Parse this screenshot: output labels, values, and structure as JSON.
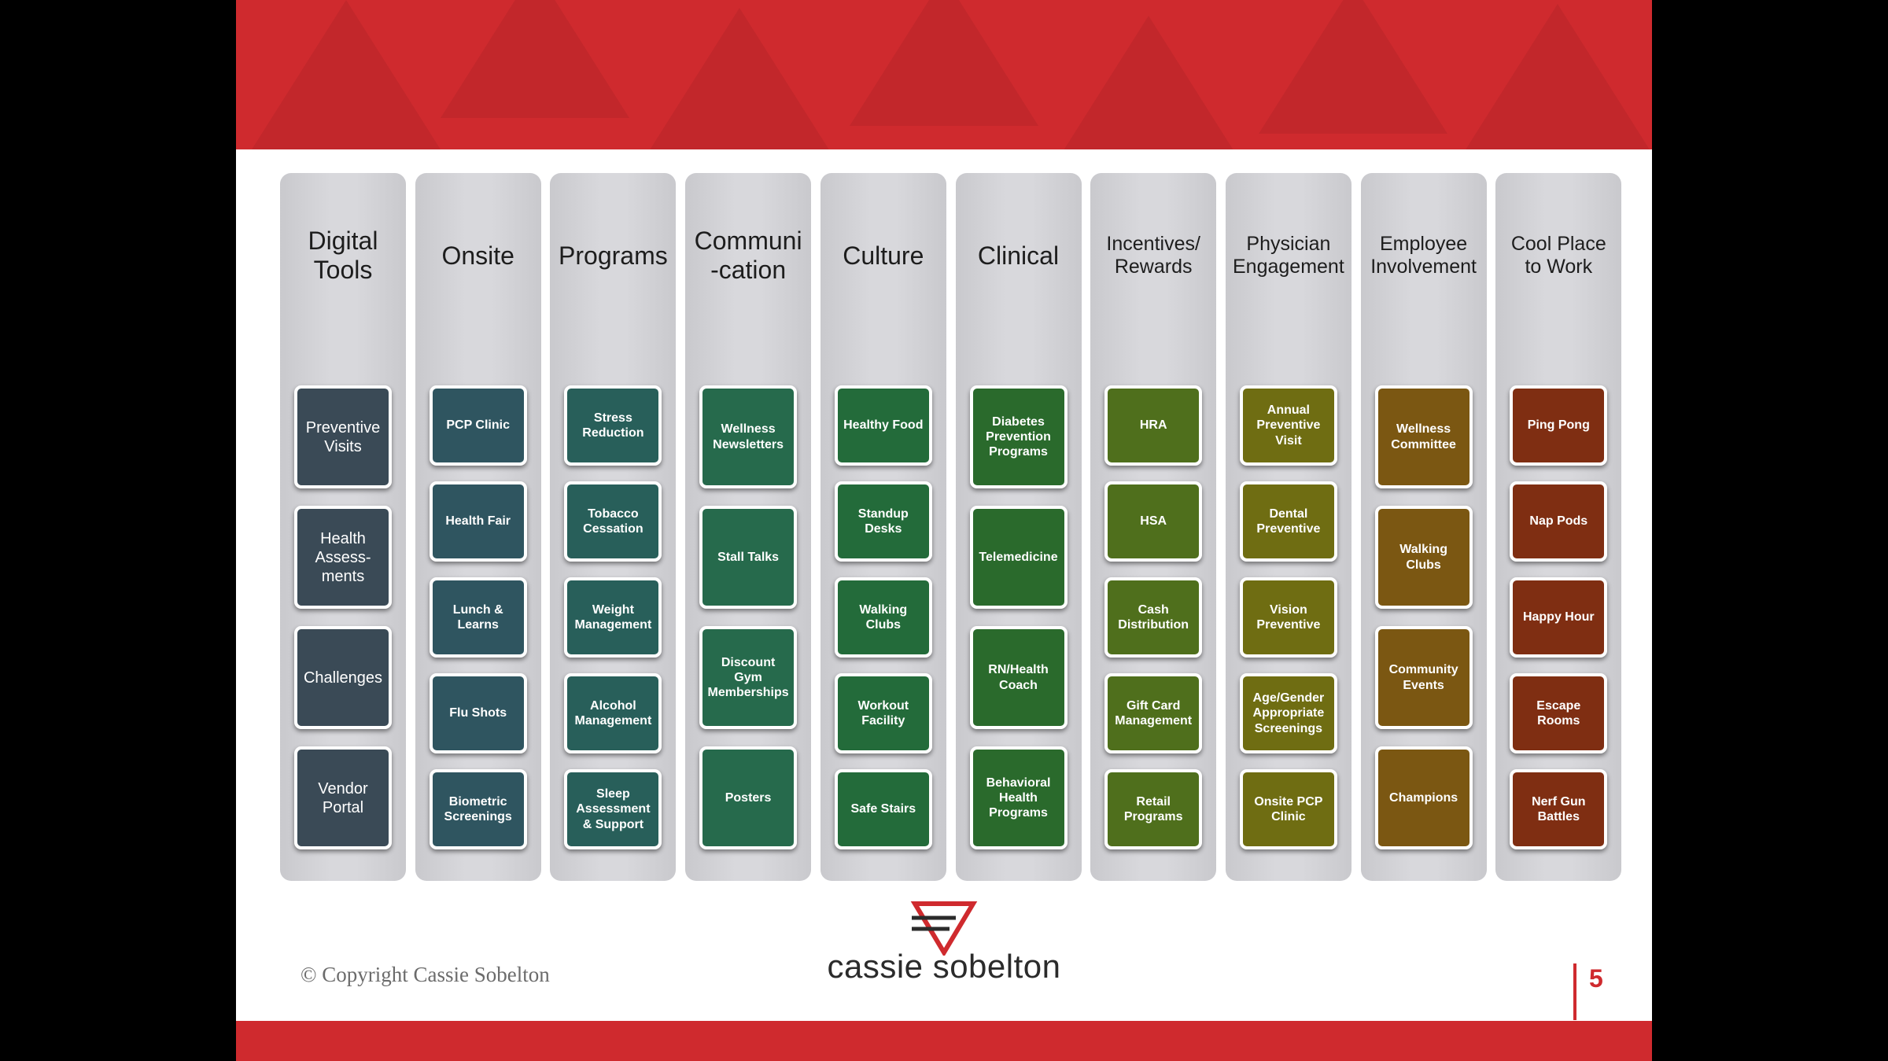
{
  "copyright": "© Copyright Cassie Sobelton",
  "brand_name": "cassie sobelton",
  "page_number": "5",
  "colors": {
    "band": "#cf2a2e",
    "column": "#d3d3d7",
    "accent": "#cf2a2e"
  },
  "columns": [
    {
      "title": "Digital\nTools",
      "color": "#3a4a56",
      "boxes": [
        "Preventive\nVisits",
        "Health\nAssess-\nments",
        "Challenges",
        "Vendor\nPortal"
      ]
    },
    {
      "title": "Onsite",
      "color": "#2f5560",
      "boxes": [
        "PCP Clinic",
        "Health Fair",
        "Lunch &\nLearns",
        "Flu Shots",
        "Biometric\nScreenings"
      ]
    },
    {
      "title": "Programs",
      "color": "#285f5a",
      "boxes": [
        "Stress\nReduction",
        "Tobacco\nCessation",
        "Weight\nManagement",
        "Alcohol\nManagement",
        "Sleep\nAssessment\n& Support"
      ]
    },
    {
      "title": "Communi\n-cation",
      "color": "#266a4c",
      "boxes": [
        "Wellness\nNewsletters",
        "Stall Talks",
        "Discount\nGym\nMemberships",
        "Posters"
      ]
    },
    {
      "title": "Culture",
      "color": "#236b3a",
      "boxes": [
        "Healthy Food",
        "Standup\nDesks",
        "Walking\nClubs",
        "Workout\nFacility",
        "Safe Stairs"
      ]
    },
    {
      "title": "Clinical",
      "color": "#2a6a2c",
      "boxes": [
        "Diabetes\nPrevention\nPrograms",
        "Telemedicine",
        "RN/Health\nCoach",
        "Behavioral\nHealth\nPrograms"
      ]
    },
    {
      "title": "Incentives/\nRewards",
      "color": "#4f6f1c",
      "boxes": [
        "HRA",
        "HSA",
        "Cash\nDistribution",
        "Gift Card\nManagement",
        "Retail\nPrograms"
      ]
    },
    {
      "title": "Physician\nEngagement",
      "color": "#6f6d12",
      "boxes": [
        "Annual\nPreventive\nVisit",
        "Dental\nPreventive",
        "Vision\nPreventive",
        "Age/Gender\nAppropriate\nScreenings",
        "Onsite PCP\nClinic"
      ]
    },
    {
      "title": "Employee\nInvolvement",
      "color": "#7b5712",
      "boxes": [
        "Wellness\nCommittee",
        "Walking\nClubs",
        "Community\nEvents",
        "Champions"
      ]
    },
    {
      "title": "Cool Place\nto Work",
      "color": "#7f2e12",
      "boxes": [
        "Ping Pong",
        "Nap Pods",
        "Happy Hour",
        "Escape\nRooms",
        "Nerf Gun\nBattles"
      ]
    }
  ]
}
